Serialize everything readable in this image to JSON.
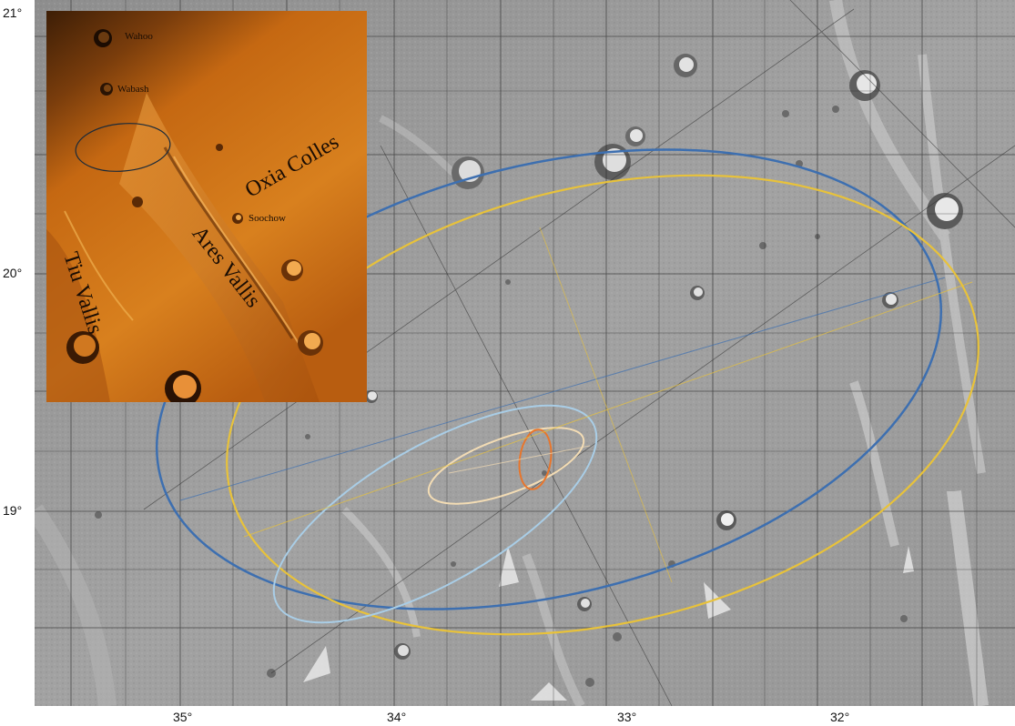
{
  "map": {
    "y_axis_labels": [
      "21°",
      "20°",
      "19°"
    ],
    "x_axis_labels": [
      "35°",
      "34°",
      "33°",
      "32°"
    ],
    "colors": {
      "background": "#9a9a9a",
      "grid_lines": "#2a2a2a",
      "ellipse_blue": "#3d6fb0",
      "ellipse_yellow": "#e8c23a",
      "ellipse_light_blue": "#a9cde6",
      "ellipse_cream": "#f3dcb4",
      "ellipse_orange": "#e8762c"
    }
  },
  "inset": {
    "labels": {
      "wahoo": "Wahoo",
      "wabash": "Wabash",
      "oxia_colles": "Oxia Colles",
      "soochow": "Soochow",
      "tiu_vallis": "Tiu Vallis",
      "ares_vallis": "Ares Vallis"
    },
    "colors": {
      "dark": "#4a2508",
      "mid": "#c96a12",
      "light": "#f0a040"
    }
  }
}
